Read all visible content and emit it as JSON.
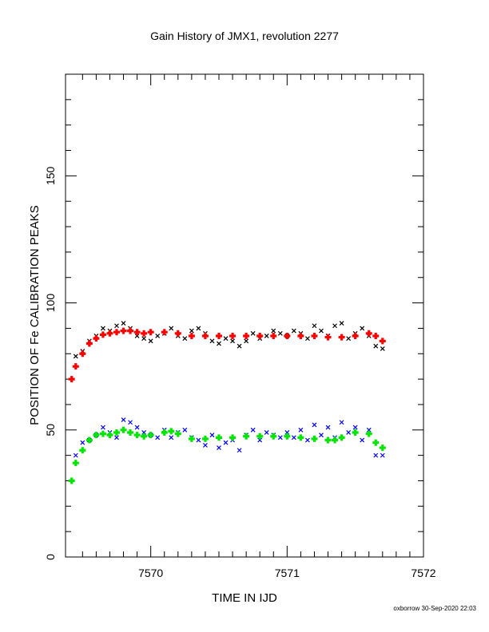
{
  "chart_data": {
    "type": "scatter",
    "title": "Gain History of JMX1, revolution 2277",
    "xlabel": "TIME IN IJD",
    "ylabel": "POSITION OF Fe CALIBRATION PEAKS",
    "xlim": [
      7569.375,
      7572.0
    ],
    "ylim": [
      0,
      190
    ],
    "xticks": [
      7570,
      7571,
      7572
    ],
    "xtick_labels": [
      "7570",
      "7571",
      "7572"
    ],
    "yticks": [
      0,
      50,
      100,
      150
    ],
    "ytick_labels": [
      "0",
      "50",
      "100",
      "150"
    ],
    "grid": false,
    "legend": "none",
    "series": [
      {
        "marker": "x",
        "color": "#000000",
        "x": [
          7569.45,
          7569.5,
          7569.55,
          7569.6,
          7569.65,
          7569.7,
          7569.75,
          7569.8,
          7569.85,
          7569.9,
          7569.95,
          7570.0,
          7570.05,
          7570.1,
          7570.15,
          7570.2,
          7570.25,
          7570.3,
          7570.35,
          7570.4,
          7570.45,
          7570.5,
          7570.55,
          7570.6,
          7570.65,
          7570.7,
          7570.75,
          7570.8,
          7570.85,
          7570.9,
          7570.95,
          7571.0,
          7571.05,
          7571.1,
          7571.15,
          7571.2,
          7571.25,
          7571.3,
          7571.35,
          7571.4,
          7571.45,
          7571.5,
          7571.55,
          7571.6,
          7571.65,
          7571.7
        ],
        "y": [
          79,
          81,
          85,
          87,
          90,
          89,
          91,
          92,
          90,
          87,
          86,
          85,
          87,
          88,
          90,
          87,
          86,
          89,
          90,
          88,
          85,
          84,
          86,
          85,
          83,
          85,
          88,
          86,
          87,
          89,
          88,
          87,
          89,
          88,
          86,
          91,
          89,
          87,
          91,
          92,
          86,
          88,
          90,
          87,
          83,
          82
        ]
      },
      {
        "marker": "x",
        "color": "#0000ff",
        "x": [
          7569.45,
          7569.5,
          7569.55,
          7569.6,
          7569.65,
          7569.7,
          7569.75,
          7569.8,
          7569.85,
          7569.9,
          7569.95,
          7570.0,
          7570.05,
          7570.1,
          7570.15,
          7570.2,
          7570.25,
          7570.3,
          7570.35,
          7570.4,
          7570.45,
          7570.5,
          7570.55,
          7570.6,
          7570.65,
          7570.7,
          7570.75,
          7570.8,
          7570.85,
          7570.9,
          7570.95,
          7571.0,
          7571.05,
          7571.1,
          7571.15,
          7571.2,
          7571.25,
          7571.3,
          7571.35,
          7571.4,
          7571.45,
          7571.5,
          7571.55,
          7571.6,
          7571.65,
          7571.7
        ],
        "y": [
          40,
          45,
          46,
          48,
          51,
          49,
          47,
          54,
          53,
          51,
          49,
          48,
          47,
          50,
          47,
          49,
          50,
          47,
          46,
          44,
          48,
          43,
          45,
          46,
          42,
          48,
          50,
          46,
          49,
          48,
          47,
          49,
          47,
          50,
          46,
          52,
          48,
          51,
          47,
          53,
          49,
          51,
          46,
          50,
          40,
          40
        ]
      },
      {
        "marker": "+",
        "color": "#ff0000",
        "x": [
          7569.42,
          7569.45,
          7569.5,
          7569.55,
          7569.6,
          7569.65,
          7569.7,
          7569.75,
          7569.8,
          7569.85,
          7569.9,
          7569.95,
          7570.0,
          7570.1,
          7570.2,
          7570.3,
          7570.4,
          7570.5,
          7570.6,
          7570.7,
          7570.8,
          7570.9,
          7571.0,
          7571.1,
          7571.2,
          7571.3,
          7571.4,
          7571.5,
          7571.6,
          7571.65,
          7571.7
        ],
        "y": [
          70,
          75,
          80,
          84,
          86,
          87.5,
          88,
          88.5,
          89,
          89,
          88.5,
          88,
          88.5,
          88.5,
          88,
          87,
          87,
          87,
          87,
          87,
          87,
          87,
          87,
          87,
          87,
          86.5,
          86.5,
          87,
          88,
          87,
          85
        ]
      },
      {
        "marker": "+",
        "color": "#00e600",
        "x": [
          7569.42,
          7569.45,
          7569.5,
          7569.55,
          7569.6,
          7569.65,
          7569.7,
          7569.75,
          7569.8,
          7569.85,
          7569.9,
          7569.95,
          7570.0,
          7570.1,
          7570.15,
          7570.2,
          7570.3,
          7570.4,
          7570.5,
          7570.6,
          7570.7,
          7570.8,
          7570.9,
          7571.0,
          7571.1,
          7571.2,
          7571.3,
          7571.35,
          7571.4,
          7571.5,
          7571.6,
          7571.65,
          7571.7
        ],
        "y": [
          30,
          37,
          42,
          46,
          48,
          48.5,
          48,
          49,
          50,
          49,
          48,
          47.5,
          48,
          49,
          49.5,
          48.5,
          46.5,
          46.5,
          47,
          47,
          47.5,
          47.5,
          47.5,
          47.5,
          47,
          46.5,
          46,
          46,
          47,
          49,
          48.5,
          45,
          43
        ]
      }
    ]
  },
  "footer": {
    "text": "oxborrow 30-Sep-2020 22:03"
  }
}
